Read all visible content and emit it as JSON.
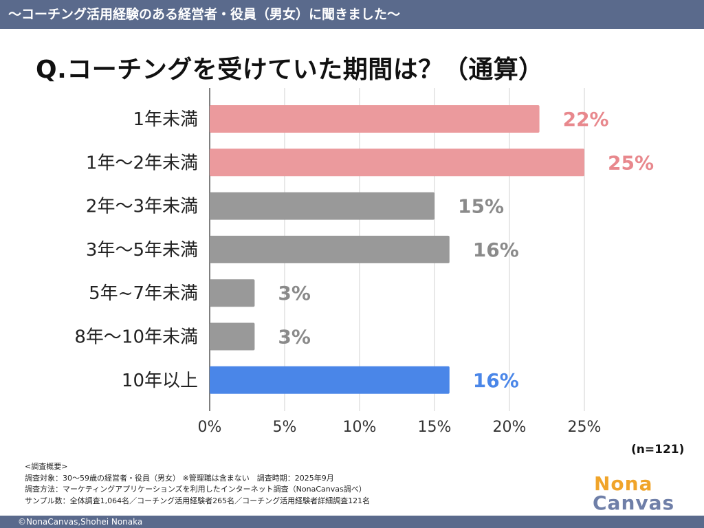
{
  "header": {
    "banner": "〜コーチング活用経験のある経営者・役員（男女）に聞きました〜"
  },
  "question": "Q.コーチングを受けていた期間は？（通算）",
  "chart_data": {
    "type": "bar",
    "orientation": "horizontal",
    "title": "Q.コーチングを受けていた期間は？（通算）",
    "categories": [
      "1年未満",
      "1年〜2年未満",
      "2年〜3年未満",
      "3年〜5年未満",
      "5年~7年未満",
      "8年〜10年未満",
      "10年以上"
    ],
    "values": [
      22,
      25,
      15,
      16,
      3,
      3,
      16
    ],
    "value_labels": [
      "22%",
      "25%",
      "15%",
      "16%",
      "3%",
      "3%",
      "16%"
    ],
    "bar_colors": [
      "#eb9a9d",
      "#eb9a9d",
      "#999999",
      "#999999",
      "#999999",
      "#999999",
      "#4a86e8"
    ],
    "label_colors": [
      "#e8888d",
      "#e8888d",
      "#8a8a8a",
      "#8a8a8a",
      "#8a8a8a",
      "#8a8a8a",
      "#4a86e8"
    ],
    "xlim": [
      0,
      25
    ],
    "xticks": [
      0,
      5,
      10,
      15,
      20,
      25
    ],
    "xtick_labels": [
      "0%",
      "5%",
      "10%",
      "15%",
      "20%",
      "25%"
    ],
    "grid": true,
    "xlabel": "",
    "ylabel": ""
  },
  "sample": "(n=121)",
  "footnote": {
    "heading": "<調査概要>",
    "lines": [
      "調査対象：30〜59歳の経営者・役員（男女） ※管理職は含まない　調査時期：2025年9月",
      "調査方法：マーケティングアプリケーションズを利用したインターネット調査（NonaCanvas調べ）",
      "サンプル数：全体調査1,064名／コーチング活用経験者265名／コーチング活用経験者詳細調査121名"
    ]
  },
  "logo": {
    "line1": "Nona",
    "line2": "Canvas"
  },
  "copyright": "©NonaCanvas,Shohei Nonaka"
}
